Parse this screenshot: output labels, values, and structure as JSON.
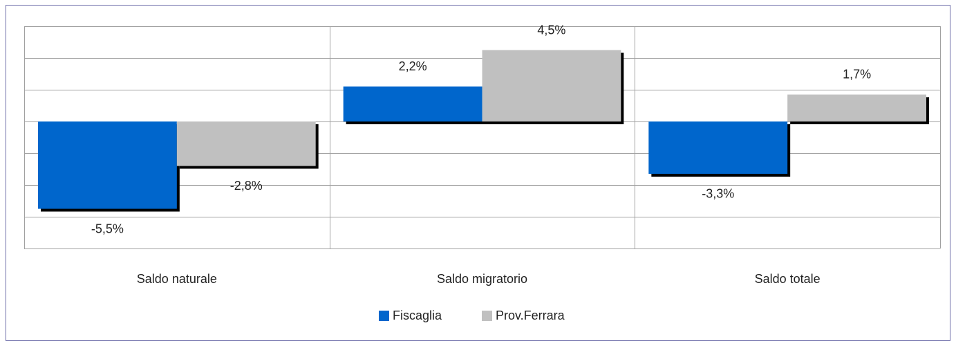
{
  "chart_data": {
    "type": "bar",
    "categories": [
      "Saldo naturale",
      "Saldo migratorio",
      "Saldo totale"
    ],
    "series": [
      {
        "name": "Fiscaglia",
        "color": "#0066cc",
        "values": [
          -5.5,
          2.2,
          -3.3
        ],
        "value_labels": [
          "-5,5%",
          "2,2%",
          "-3,3%"
        ]
      },
      {
        "name": "Prov.Ferrara",
        "color": "#c0c0c0",
        "values": [
          -2.8,
          4.5,
          1.7
        ],
        "value_labels": [
          "-2,8%",
          "4,5%",
          "1,7%"
        ]
      }
    ],
    "ylim": [
      -8,
      6
    ],
    "yticks": [
      -8,
      -6,
      -4,
      -2,
      0,
      2,
      4,
      6
    ],
    "grid": true,
    "legend": "bottom"
  }
}
